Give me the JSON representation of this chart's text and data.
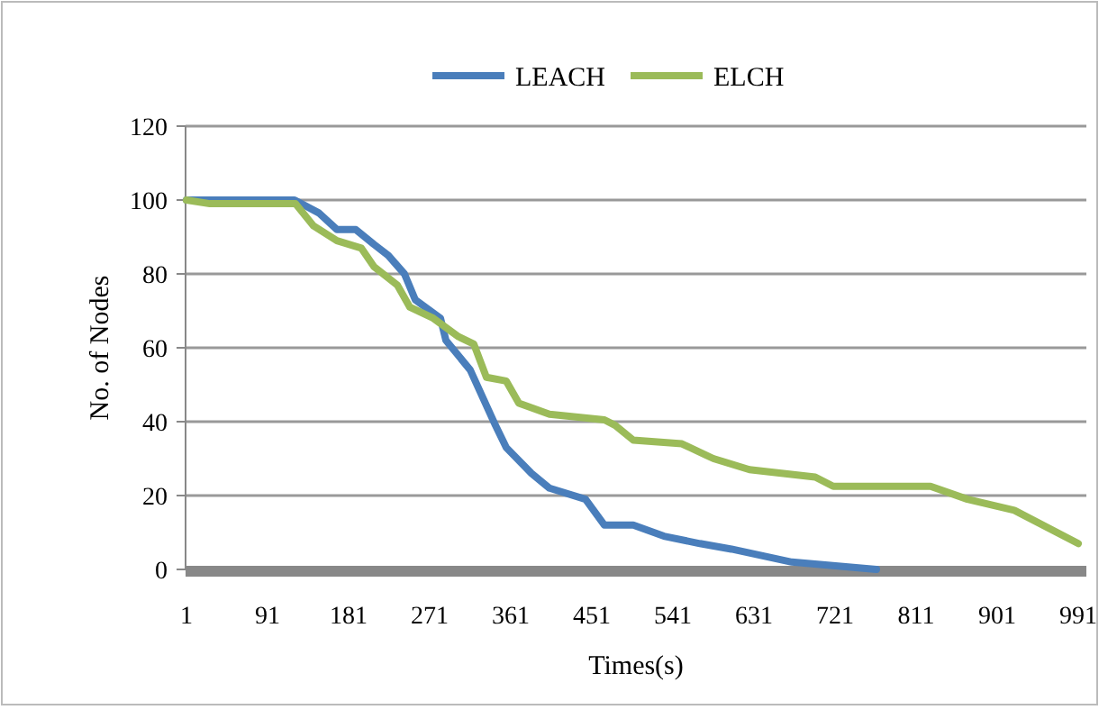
{
  "chart_data": {
    "type": "line",
    "xlabel": "Times(s)",
    "ylabel": "No. of Nodes",
    "xlim": [
      0,
      1000
    ],
    "xticks": [
      1,
      91,
      181,
      271,
      361,
      451,
      541,
      631,
      721,
      811,
      901,
      991
    ],
    "ylim": [
      0,
      120
    ],
    "yticks": [
      0,
      20,
      40,
      60,
      80,
      100,
      120
    ],
    "grid": "y",
    "legend": "top",
    "line_style": "solid",
    "marker": "none",
    "series": [
      {
        "name": "LEACH",
        "color": "#4a7ebb",
        "x": [
          1,
          121,
          148,
          168,
          189,
          209,
          225,
          243,
          255,
          283,
          289,
          316,
          344,
          356,
          384,
          404,
          444,
          465,
          497,
          531,
          571,
          606,
          673,
          767
        ],
        "values": [
          100,
          100,
          96.5,
          92,
          92,
          88,
          85,
          80,
          73,
          68,
          62,
          54,
          39,
          33,
          26,
          22,
          19,
          12,
          12,
          9,
          7,
          5.5,
          2,
          0
        ]
      },
      {
        "name": "ELCH",
        "color": "#9bbb59",
        "x": [
          1,
          27,
          122,
          142,
          168,
          195,
          209,
          235,
          249,
          275,
          303,
          320,
          334,
          356,
          370,
          404,
          465,
          477,
          497,
          551,
          586,
          626,
          699,
          719,
          827,
          868,
          920,
          991
        ],
        "values": [
          100,
          99,
          99,
          93,
          89,
          87,
          82,
          77,
          71,
          68,
          63,
          61,
          52,
          51,
          45,
          42,
          40.5,
          39,
          35,
          34,
          30,
          27,
          25,
          22.5,
          22.5,
          19,
          16,
          7
        ]
      }
    ]
  }
}
